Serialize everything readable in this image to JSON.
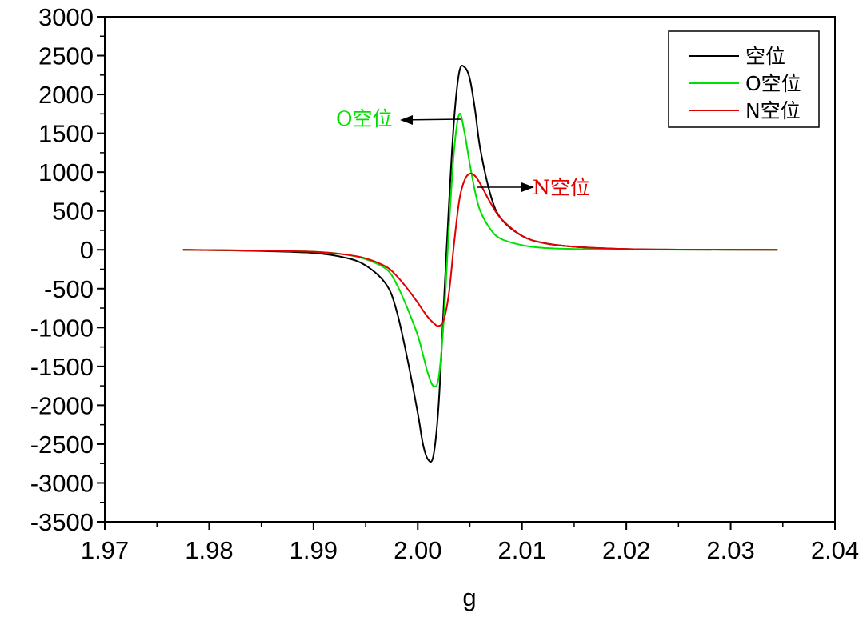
{
  "chart_data": {
    "type": "line",
    "title": "",
    "xlabel": "g",
    "ylabel": "",
    "xlim": [
      1.97,
      2.04
    ],
    "ylim": [
      -3500,
      3000
    ],
    "xticks": [
      "1.97",
      "1.98",
      "1.99",
      "2.00",
      "2.01",
      "2.02",
      "2.03",
      "2.04"
    ],
    "yticks": [
      "3000",
      "2500",
      "2000",
      "1500",
      "1000",
      "500",
      "0",
      "-500",
      "-1000",
      "-1500",
      "-2000",
      "-2500",
      "-3000",
      "-3500"
    ],
    "grid": false,
    "legend_position": "top-right",
    "series": [
      {
        "name": "空位",
        "color": "#000000",
        "x": [
          1.9775,
          1.985,
          1.99,
          1.993,
          1.995,
          1.997,
          1.998,
          1.999,
          2.0,
          2.0005,
          2.001,
          2.0015,
          2.002,
          2.0025,
          2.003,
          2.0035,
          2.004,
          2.0045,
          2.005,
          2.0055,
          2.006,
          2.007,
          2.008,
          2.01,
          2.012,
          2.015,
          2.02,
          2.025,
          2.0345
        ],
        "y": [
          0,
          -15,
          -40,
          -100,
          -200,
          -450,
          -800,
          -1400,
          -2100,
          -2500,
          -2700,
          -2650,
          -2000,
          -700,
          600,
          1700,
          2300,
          2350,
          2200,
          1800,
          1300,
          700,
          400,
          180,
          90,
          40,
          10,
          3,
          0
        ]
      },
      {
        "name": "O空位",
        "color": "#00e000",
        "x": [
          1.9775,
          1.985,
          1.99,
          1.993,
          1.995,
          1.997,
          1.998,
          1.999,
          2.0,
          2.0005,
          2.001,
          2.0015,
          2.002,
          2.0025,
          2.003,
          2.0035,
          2.004,
          2.0045,
          2.005,
          2.0055,
          2.006,
          2.007,
          2.008,
          2.01,
          2.012,
          2.015,
          2.02,
          2.025,
          2.0345
        ],
        "y": [
          0,
          -10,
          -25,
          -60,
          -120,
          -250,
          -450,
          -750,
          -1100,
          -1350,
          -1600,
          -1750,
          -1650,
          -900,
          300,
          1300,
          1750,
          1500,
          1100,
          750,
          500,
          260,
          140,
          60,
          25,
          10,
          3,
          1,
          0
        ]
      },
      {
        "name": "N空位",
        "color": "#e00000",
        "x": [
          1.9775,
          1.985,
          1.99,
          1.993,
          1.995,
          1.997,
          1.998,
          1.999,
          2.0,
          2.0005,
          2.001,
          2.0015,
          2.002,
          2.0025,
          2.003,
          2.0035,
          2.004,
          2.0045,
          2.005,
          2.0055,
          2.006,
          2.007,
          2.008,
          2.01,
          2.012,
          2.015,
          2.02,
          2.025,
          2.0345
        ],
        "y": [
          0,
          -10,
          -25,
          -60,
          -110,
          -220,
          -340,
          -500,
          -680,
          -780,
          -870,
          -940,
          -980,
          -900,
          -550,
          100,
          650,
          900,
          980,
          950,
          850,
          600,
          400,
          180,
          90,
          40,
          10,
          3,
          0
        ]
      }
    ],
    "annotations": [
      {
        "text": "O空位",
        "color": "#00e000"
      },
      {
        "text": "N空位",
        "color": "#e00000"
      }
    ]
  }
}
